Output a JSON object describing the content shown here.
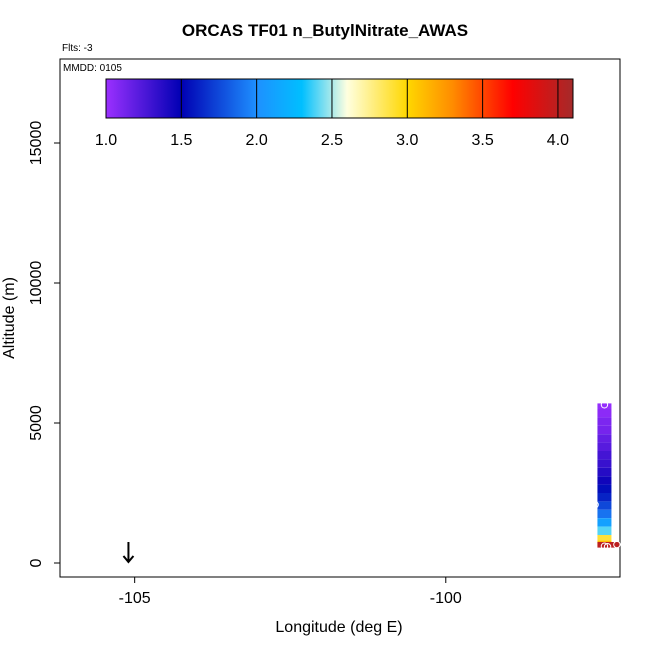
{
  "chart_data": {
    "type": "scatter",
    "title": "ORCAS TF01 n_ButylNitrate_AWAS",
    "flts_label": "Flts: -3",
    "mmdd_label": "MMDD: 0105",
    "xlabel": "Longitude (deg E)",
    "ylabel": "Altitude (m)",
    "xlim": [
      -106.2,
      -97.2
    ],
    "ylim": [
      -500,
      18000
    ],
    "x_ticks": [
      -105,
      -100
    ],
    "x_tick_labels": [
      "-105",
      "-100"
    ],
    "y_ticks": [
      0,
      5000,
      10000,
      15000
    ],
    "y_tick_labels": [
      "0",
      "5000",
      "10000",
      "15000"
    ],
    "colorbar": {
      "range": [
        1.0,
        4.1
      ],
      "ticks": [
        1.0,
        1.5,
        2.0,
        2.5,
        3.0,
        3.5,
        4.0
      ],
      "tick_labels": [
        "1.0",
        "1.5",
        "2.0",
        "2.5",
        "3.0",
        "3.5",
        "4.0"
      ],
      "stops": [
        "#9b30ff",
        "#0000b3",
        "#1e90ff",
        "#00bfff",
        "#ffffe0",
        "#ffd700",
        "#ff8c00",
        "#ff0000",
        "#a52a2a"
      ],
      "stop_values": [
        1.0,
        1.5,
        2.0,
        2.3,
        2.6,
        3.0,
        3.3,
        3.7,
        4.1
      ]
    },
    "profile": {
      "longitude": -97.45,
      "bins": [
        {
          "alt_low": 5500,
          "alt_high": 5700,
          "value": 1.02
        },
        {
          "alt_low": 5200,
          "alt_high": 5500,
          "value": 1.05
        },
        {
          "alt_low": 4900,
          "alt_high": 5200,
          "value": 1.1
        },
        {
          "alt_low": 4600,
          "alt_high": 4900,
          "value": 1.12
        },
        {
          "alt_low": 4300,
          "alt_high": 4600,
          "value": 1.18
        },
        {
          "alt_low": 4000,
          "alt_high": 4300,
          "value": 1.22
        },
        {
          "alt_low": 3700,
          "alt_high": 4000,
          "value": 1.28
        },
        {
          "alt_low": 3400,
          "alt_high": 3700,
          "value": 1.32
        },
        {
          "alt_low": 3100,
          "alt_high": 3400,
          "value": 1.38
        },
        {
          "alt_low": 2800,
          "alt_high": 3100,
          "value": 1.45
        },
        {
          "alt_low": 2500,
          "alt_high": 2800,
          "value": 1.55
        },
        {
          "alt_low": 2200,
          "alt_high": 2500,
          "value": 1.62
        },
        {
          "alt_low": 1900,
          "alt_high": 2200,
          "value": 1.75
        },
        {
          "alt_low": 1600,
          "alt_high": 1900,
          "value": 1.9
        },
        {
          "alt_low": 1300,
          "alt_high": 1600,
          "value": 2.1
        },
        {
          "alt_low": 1000,
          "alt_high": 1300,
          "value": 2.4
        },
        {
          "alt_low": 800,
          "alt_high": 1000,
          "value": 2.9
        },
        {
          "alt_low": 600,
          "alt_high": 800,
          "value": 3.1
        }
      ],
      "surface_bin": {
        "lon_low": -97.45,
        "lon_high": -97.2,
        "alt_low": 550,
        "alt_high": 750,
        "value": 4.0
      }
    },
    "sample_points": [
      {
        "x": -97.45,
        "y": 5650
      },
      {
        "x": -97.6,
        "y": 2080
      },
      {
        "x": -97.45,
        "y": 600
      },
      {
        "x": -97.25,
        "y": 660
      },
      {
        "x": -97.4,
        "y": 580
      }
    ],
    "marker": {
      "x": -105.1,
      "y": 0
    },
    "grid": false
  }
}
